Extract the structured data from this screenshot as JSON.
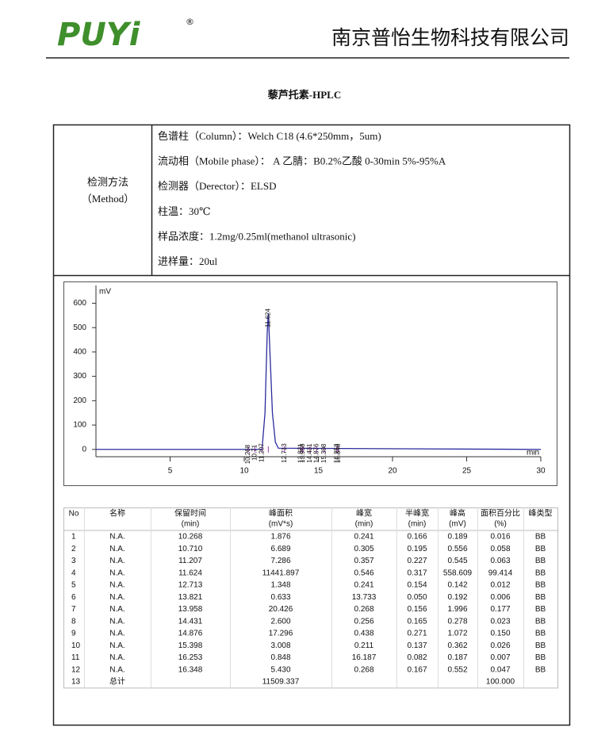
{
  "header": {
    "logo": "PUYi",
    "registered": "®",
    "company": "南京普怡生物科技有限公司"
  },
  "title": "藜芦托素-HPLC",
  "method": {
    "label": "检测方法",
    "label_en": "（Method）",
    "rows": [
      "色谱柱（Column）：Welch C18 (4.6*250mm，5um)",
      "流动相（Mobile phase）： A 乙腈：B0.2%乙酸 0-30min 5%-95%A",
      "检测器（Derector）：ELSD",
      "柱温：30℃",
      "样品浓度：1.2mg/0.25ml(methanol ultrasonic)",
      "进样量：20ul"
    ]
  },
  "chart_data": {
    "type": "line",
    "y_unit": "mV",
    "x_unit": "min",
    "xlim": [
      0,
      30
    ],
    "ylim": [
      -30,
      660
    ],
    "xticks": [
      5,
      10,
      15,
      20,
      25,
      30
    ],
    "yticks": [
      0,
      100,
      200,
      300,
      400,
      500,
      600
    ],
    "series": [
      {
        "color": "#2b2b9e",
        "x": [
          0,
          11.2,
          11.4,
          11.55,
          11.624,
          11.7,
          11.9,
          12.1,
          12.3,
          30
        ],
        "values": [
          0,
          0,
          150,
          480,
          558.6,
          450,
          150,
          30,
          5,
          0
        ]
      }
    ],
    "peaks": {
      "color": "#9b3fb0",
      "x": [
        10.268,
        10.71,
        11.207,
        11.624,
        12.713,
        13.821,
        13.958,
        14.431,
        14.876,
        15.398,
        16.253,
        16.348
      ]
    }
  },
  "table": {
    "headers": [
      [
        "No"
      ],
      [
        "名称"
      ],
      [
        "保留时间",
        "(min)"
      ],
      [
        "峰面积",
        "(mV*s)"
      ],
      [
        "峰宽",
        "(min)"
      ],
      [
        "半峰宽",
        "(min)"
      ],
      [
        "峰高",
        "(mV)"
      ],
      [
        "面积百分比",
        "(%)"
      ],
      [
        "峰类型"
      ]
    ],
    "rows": [
      [
        "1",
        "N.A.",
        "10.268",
        "1.876",
        "0.241",
        "0.166",
        "0.189",
        "0.016",
        "BB"
      ],
      [
        "2",
        "N.A.",
        "10.710",
        "6.689",
        "0.305",
        "0.195",
        "0.556",
        "0.058",
        "BB"
      ],
      [
        "3",
        "N.A.",
        "11.207",
        "7.286",
        "0.357",
        "0.227",
        "0.545",
        "0.063",
        "BB"
      ],
      [
        "4",
        "N.A.",
        "11.624",
        "11441.897",
        "0.546",
        "0.317",
        "558.609",
        "99.414",
        "BB"
      ],
      [
        "5",
        "N.A.",
        "12.713",
        "1.348",
        "0.241",
        "0.154",
        "0.142",
        "0.012",
        "BB"
      ],
      [
        "6",
        "N.A.",
        "13.821",
        "0.633",
        "13.733",
        "0.050",
        "0.192",
        "0.006",
        "BB"
      ],
      [
        "7",
        "N.A.",
        "13.958",
        "20.426",
        "0.268",
        "0.156",
        "1.996",
        "0.177",
        "BB"
      ],
      [
        "8",
        "N.A.",
        "14.431",
        "2.600",
        "0.256",
        "0.165",
        "0.278",
        "0.023",
        "BB"
      ],
      [
        "9",
        "N.A.",
        "14.876",
        "17.296",
        "0.438",
        "0.271",
        "1.072",
        "0.150",
        "BB"
      ],
      [
        "10",
        "N.A.",
        "15.398",
        "3.008",
        "0.211",
        "0.137",
        "0.362",
        "0.026",
        "BB"
      ],
      [
        "11",
        "N.A.",
        "16.253",
        "0.848",
        "16.187",
        "0.082",
        "0.187",
        "0.007",
        "BB"
      ],
      [
        "12",
        "N.A.",
        "16.348",
        "5.430",
        "0.268",
        "0.167",
        "0.552",
        "0.047",
        "BB"
      ],
      [
        "13",
        "总计",
        null,
        "11509.337",
        null,
        null,
        null,
        "100.000",
        null
      ]
    ]
  }
}
